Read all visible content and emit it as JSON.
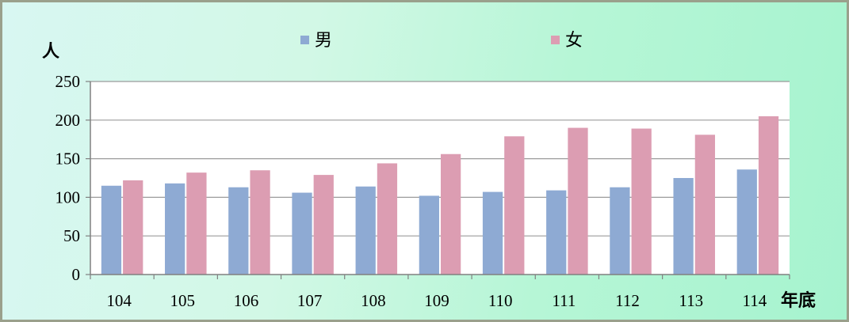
{
  "chart_data": {
    "type": "bar",
    "categories": [
      "104",
      "105",
      "106",
      "107",
      "108",
      "109",
      "110",
      "111",
      "112",
      "113",
      "114"
    ],
    "series": [
      {
        "name": "男",
        "color": "#8eaad3",
        "values": [
          115,
          118,
          113,
          106,
          114,
          102,
          107,
          109,
          113,
          125,
          136
        ]
      },
      {
        "name": "女",
        "color": "#dc9db2",
        "values": [
          122,
          132,
          135,
          129,
          144,
          156,
          179,
          190,
          189,
          181,
          205
        ]
      }
    ],
    "ylabel": "人",
    "xlabel": "年底",
    "ylim": [
      0,
      250
    ],
    "yticks": [
      0,
      50,
      100,
      150,
      200,
      250
    ],
    "grid": true,
    "legend_position": "top"
  }
}
